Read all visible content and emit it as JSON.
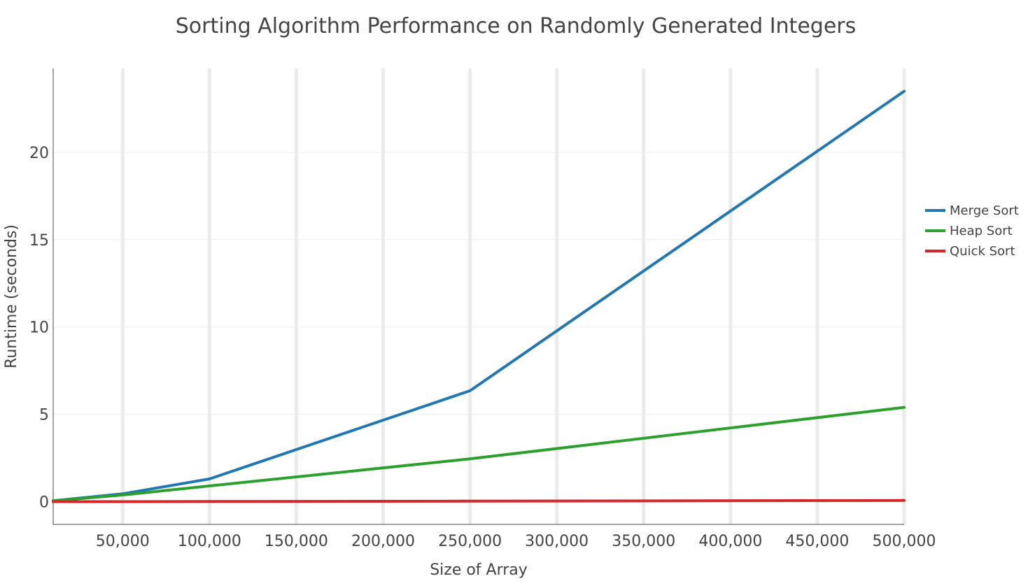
{
  "chart_data": {
    "type": "line",
    "title": "Sorting Algorithm Performance on Randomly Generated Integers",
    "xlabel": "Size of Array",
    "ylabel": "Runtime (seconds)",
    "xlim": [
      10000,
      500000
    ],
    "ylim": [
      -1.3,
      24.8
    ],
    "x_ticks": [
      50000,
      100000,
      150000,
      200000,
      250000,
      300000,
      350000,
      400000,
      450000,
      500000
    ],
    "x_tick_labels": [
      "50,000",
      "100,000",
      "150,000",
      "200,000",
      "250,000",
      "300,000",
      "350,000",
      "400,000",
      "450,000",
      "500,000"
    ],
    "y_ticks": [
      0,
      5,
      10,
      15,
      20
    ],
    "y_tick_labels": [
      "0",
      "5",
      "10",
      "15",
      "20"
    ],
    "vertical_grid": true,
    "horizontal_grid": true,
    "legend_position": "right",
    "x": [
      10000,
      50000,
      100000,
      250000,
      500000
    ],
    "series": [
      {
        "name": "Merge Sort",
        "color": "#1f77b4",
        "values": [
          0.05,
          0.45,
          1.3,
          6.35,
          23.5
        ]
      },
      {
        "name": "Heap Sort",
        "color": "#2ca02c",
        "values": [
          0.05,
          0.38,
          0.9,
          2.45,
          5.4
        ]
      },
      {
        "name": "Quick Sort",
        "color": "#d62728",
        "values": [
          0.0,
          0.0,
          0.01,
          0.03,
          0.07
        ]
      }
    ]
  }
}
